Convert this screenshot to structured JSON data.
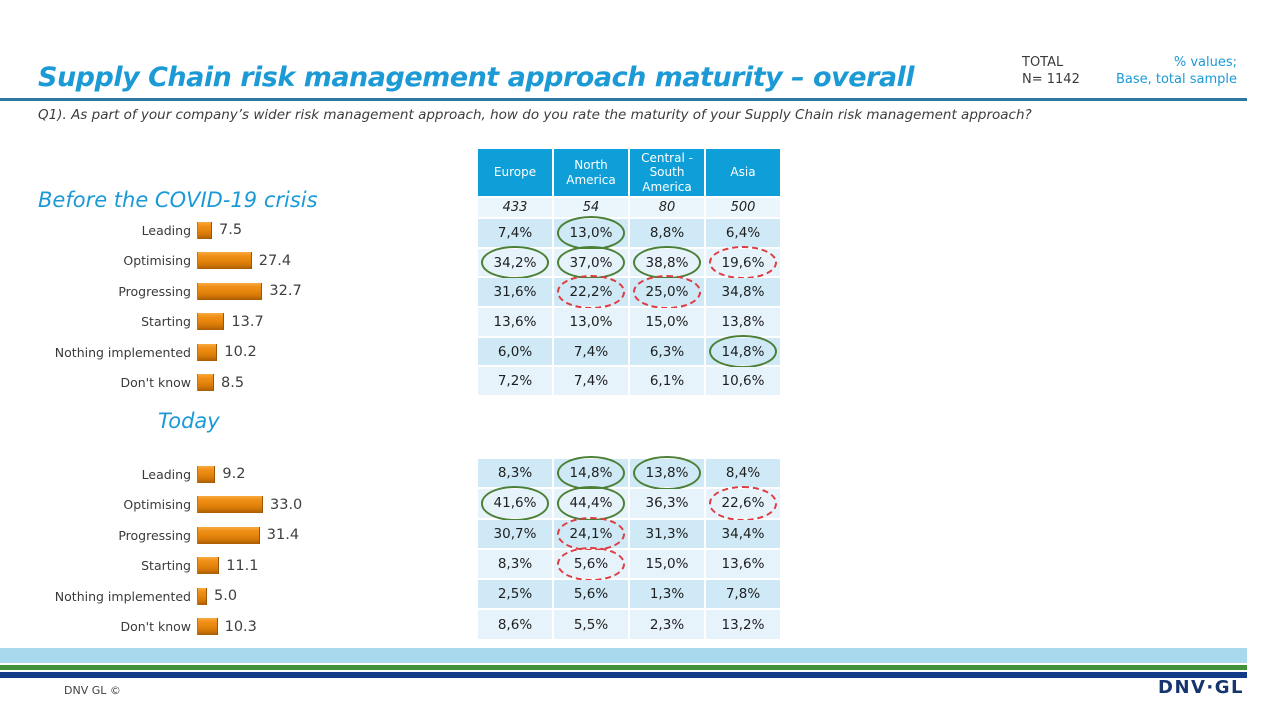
{
  "header": {
    "title": "Supply Chain risk management approach maturity – overall",
    "total_label": "TOTAL",
    "total_n": "N= 1142",
    "values_note_line1": "% values;",
    "values_note_line2": "Base, total sample",
    "question": "Q1). As part of your company’s wider risk management approach, how do you rate the maturity of your Supply Chain risk management approach?"
  },
  "chart_data": [
    {
      "type": "bar",
      "orientation": "horizontal",
      "title": "Before the COVID-19 crisis",
      "categories": [
        "Leading",
        "Optimising",
        "Progressing",
        "Starting",
        "Nothing implemented",
        "Don't know"
      ],
      "values": [
        7.5,
        27.4,
        32.7,
        13.7,
        10.2,
        8.5
      ],
      "xlim": [
        0,
        40
      ],
      "grid": false,
      "legend": false,
      "bar_color": "#e8860d"
    },
    {
      "type": "bar",
      "orientation": "horizontal",
      "title": "Today",
      "categories": [
        "Leading",
        "Optimising",
        "Progressing",
        "Starting",
        "Nothing implemented",
        "Don't know"
      ],
      "values": [
        9.2,
        33.0,
        31.4,
        11.1,
        5.0,
        10.3
      ],
      "xlim": [
        0,
        40
      ],
      "grid": false,
      "legend": false,
      "bar_color": "#e8860d"
    },
    {
      "type": "table",
      "title": "Before the COVID-19 crisis – by region",
      "columns": [
        "Europe",
        "North America",
        "Central - South America",
        "Asia"
      ],
      "base_row": [
        "433",
        "54",
        "80",
        "500"
      ],
      "rows": [
        {
          "label": "Leading",
          "cells": [
            "7,4%",
            "13,0%",
            "8,8%",
            "6,4%"
          ],
          "highlights": [
            null,
            "green",
            null,
            null
          ]
        },
        {
          "label": "Optimising",
          "cells": [
            "34,2%",
            "37,0%",
            "38,8%",
            "19,6%"
          ],
          "highlights": [
            "green",
            "green",
            "green",
            "red"
          ]
        },
        {
          "label": "Progressing",
          "cells": [
            "31,6%",
            "22,2%",
            "25,0%",
            "34,8%"
          ],
          "highlights": [
            null,
            "red",
            "red",
            null
          ]
        },
        {
          "label": "Starting",
          "cells": [
            "13,6%",
            "13,0%",
            "15,0%",
            "13,8%"
          ],
          "highlights": [
            null,
            null,
            null,
            null
          ]
        },
        {
          "label": "Nothing implemented",
          "cells": [
            "6,0%",
            "7,4%",
            "6,3%",
            "14,8%"
          ],
          "highlights": [
            null,
            null,
            null,
            "green"
          ]
        },
        {
          "label": "Don't know",
          "cells": [
            "7,2%",
            "7,4%",
            "6,1%",
            "10,6%"
          ],
          "highlights": [
            null,
            null,
            null,
            null
          ]
        }
      ]
    },
    {
      "type": "table",
      "title": "Today – by region",
      "columns": null,
      "base_row": null,
      "rows": [
        {
          "label": "Leading",
          "cells": [
            "8,3%",
            "14,8%",
            "13,8%",
            "8,4%"
          ],
          "highlights": [
            null,
            "green",
            "green",
            null
          ]
        },
        {
          "label": "Optimising",
          "cells": [
            "41,6%",
            "44,4%",
            "36,3%",
            "22,6%"
          ],
          "highlights": [
            "green",
            "green",
            null,
            "red"
          ]
        },
        {
          "label": "Progressing",
          "cells": [
            "30,7%",
            "24,1%",
            "31,3%",
            "34,4%"
          ],
          "highlights": [
            null,
            "red",
            null,
            null
          ]
        },
        {
          "label": "Starting",
          "cells": [
            "8,3%",
            "5,6%",
            "15,0%",
            "13,6%"
          ],
          "highlights": [
            null,
            "red",
            null,
            null
          ]
        },
        {
          "label": "Nothing implemented",
          "cells": [
            "2,5%",
            "5,6%",
            "1,3%",
            "7,8%"
          ],
          "highlights": [
            null,
            null,
            null,
            null
          ]
        },
        {
          "label": "Don't know",
          "cells": [
            "8,6%",
            "5,5%",
            "2,3%",
            "13,2%"
          ],
          "highlights": [
            null,
            null,
            null,
            null
          ]
        }
      ]
    }
  ],
  "footer": {
    "copyright": "DNV GL ©",
    "logo_text": "DNV·GL"
  },
  "colors": {
    "accent_blue": "#1b9ad6",
    "table_header_blue": "#0e9fd8",
    "row_dark": "#cfe9f6",
    "row_light": "#e7f3fb",
    "bar_orange": "#e8860d",
    "highlight_green": "#4c8036",
    "highlight_red": "#de3b42",
    "stripe_light_blue": "#a9d9ed",
    "stripe_green": "#44913c",
    "stripe_navy": "#123a86"
  }
}
